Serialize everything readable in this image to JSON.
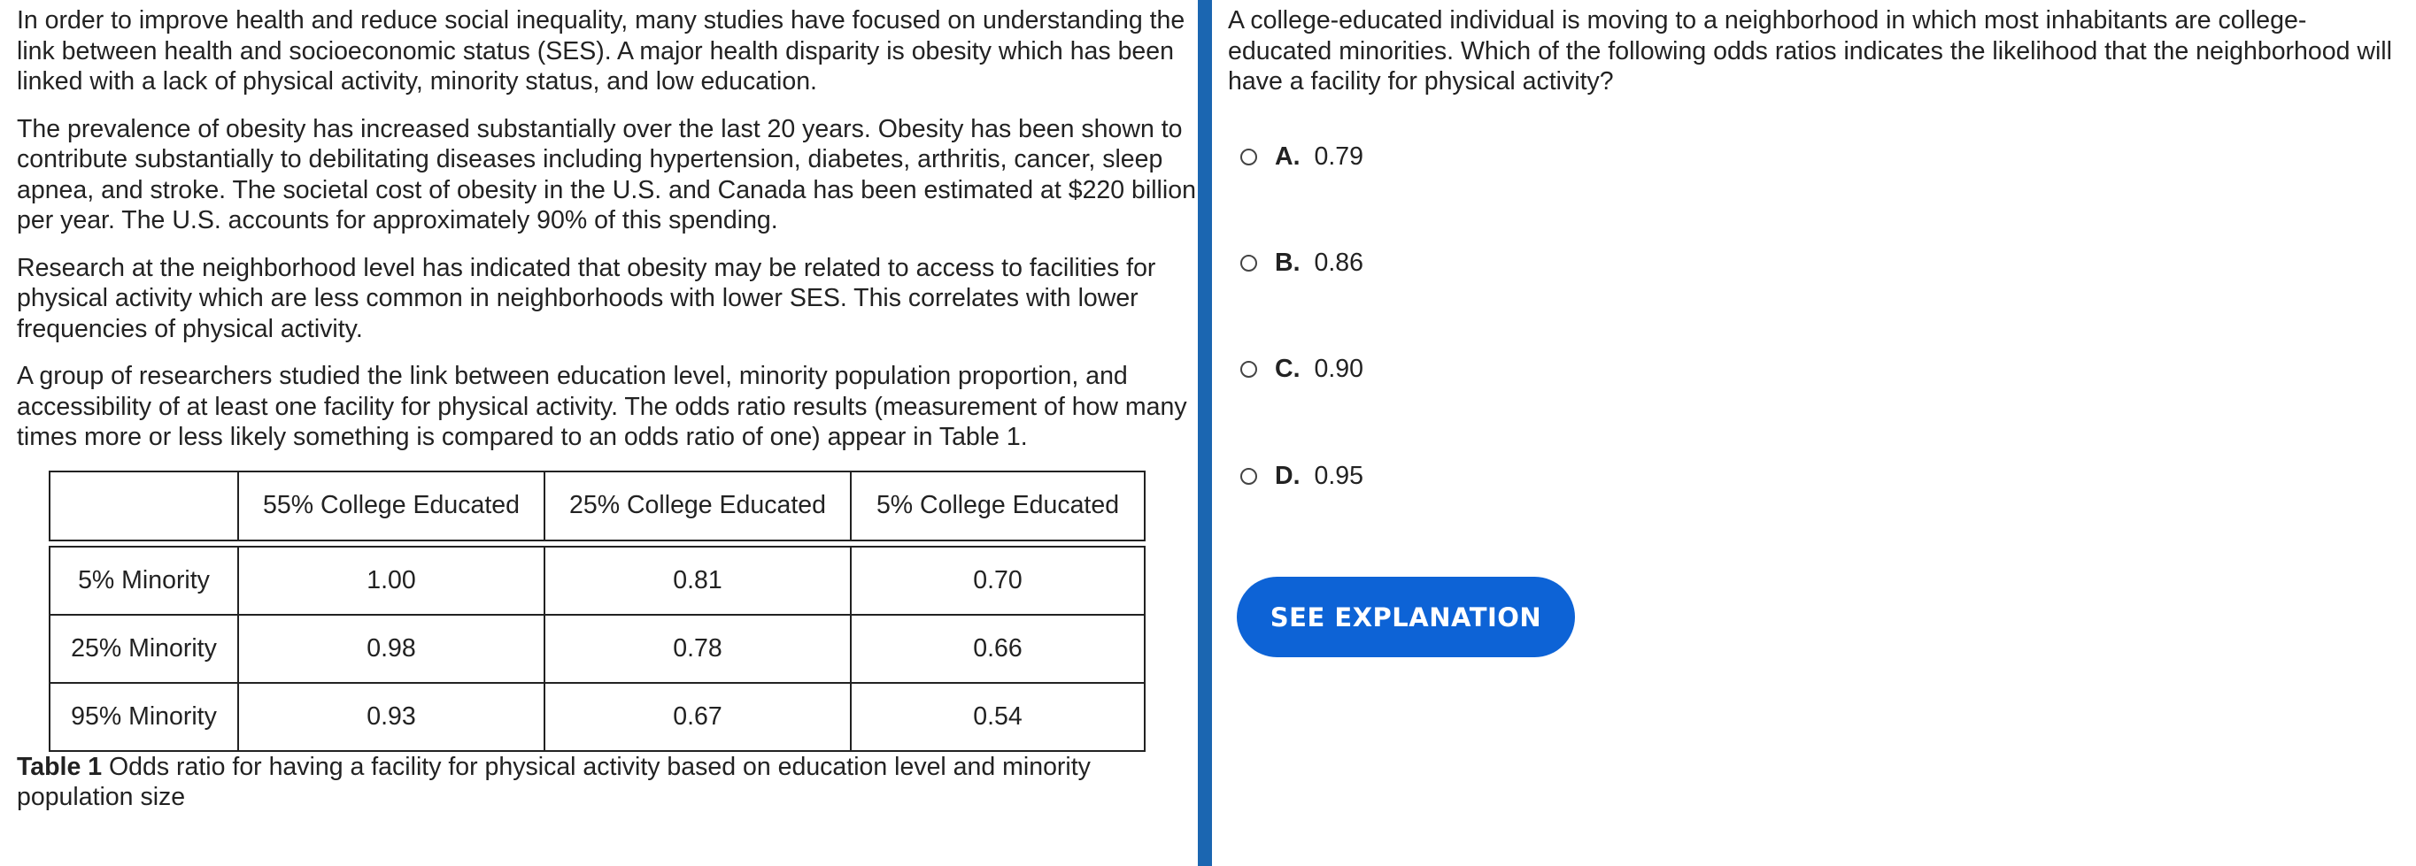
{
  "passage": {
    "paragraphs": [
      "In order to improve health and reduce social inequality, many studies have focused on understanding the link between health and socioeconomic status (SES). A major health disparity is obesity which has been linked with a lack of physical activity, minority status, and low education.",
      "The prevalence of obesity has increased substantially over the last 20 years. Obesity has been shown to contribute substantially to debilitating diseases including hypertension, diabetes, arthritis, cancer, sleep apnea, and stroke. The societal cost of obesity in the U.S. and Canada has been estimated at $220 billion per year. The U.S. accounts for approximately 90% of this spending.",
      "Research at the neighborhood level has indicated that obesity may be related to access to facilities for physical activity which are less common in neighborhoods with lower SES. This correlates with lower frequencies of physical activity.",
      "A group of researchers studied the link between education level, minority population proportion, and accessibility of at least one facility for physical activity. The odds ratio results (measurement of how many times more or less likely something is compared to an odds ratio of one) appear in Table 1."
    ]
  },
  "table": {
    "headers": [
      "",
      "55% College Educated",
      "25% College Educated",
      "5% College Educated"
    ],
    "rows": [
      [
        "5% Minority",
        "1.00",
        "0.81",
        "0.70"
      ],
      [
        "25% Minority",
        "0.98",
        "0.78",
        "0.66"
      ],
      [
        "95% Minority",
        "0.93",
        "0.67",
        "0.54"
      ]
    ],
    "caption_label": "Table 1",
    "caption_text": " Odds ratio for having a facility for physical activity based on education level and minority population size"
  },
  "question": {
    "stem": "A college-educated individual is moving to a neighborhood in which most inhabitants are college-educated minorities. Which of the following odds ratios indicates the likelihood that the neighborhood will have a facility for physical activity?",
    "options": [
      {
        "letter": "A.",
        "value": "0.79"
      },
      {
        "letter": "B.",
        "value": "0.86"
      },
      {
        "letter": "C.",
        "value": "0.90"
      },
      {
        "letter": "D.",
        "value": "0.95"
      }
    ],
    "button_label": "SEE EXPLANATION"
  },
  "colors": {
    "divider": "#1b66b1",
    "button": "#0d63d6"
  }
}
